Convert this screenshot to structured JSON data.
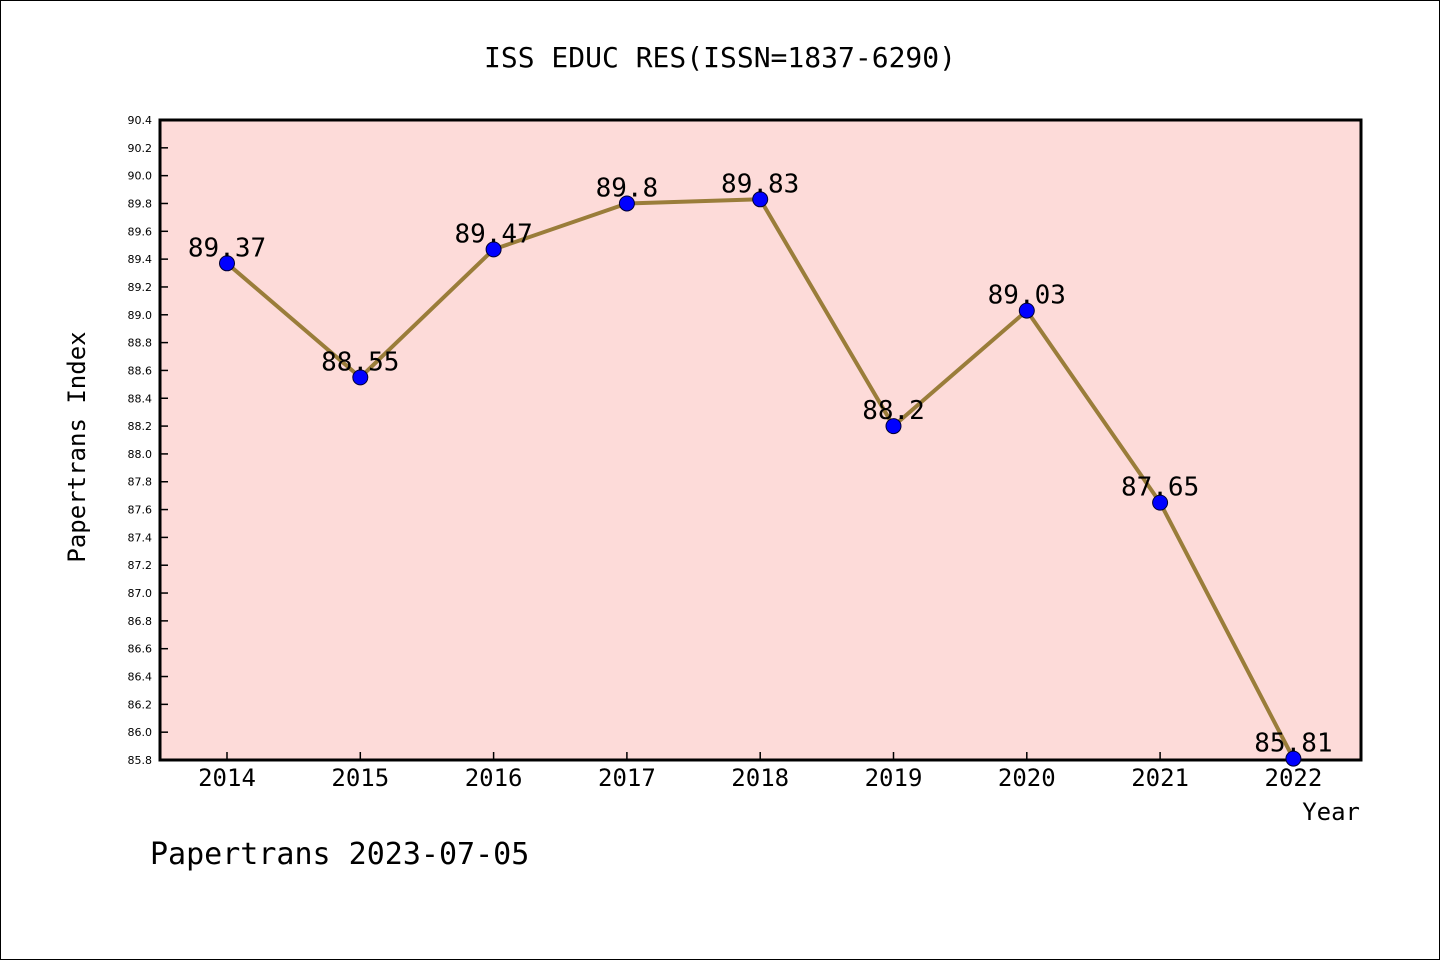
{
  "chart_data": {
    "type": "line",
    "title": "ISS EDUC RES(ISSN=1837-6290)",
    "xlabel": "Year",
    "ylabel": "Papertrans Index",
    "footer": "Papertrans 2023-07-05",
    "categories": [
      "2014",
      "2015",
      "2016",
      "2017",
      "2018",
      "2019",
      "2020",
      "2021",
      "2022"
    ],
    "values": [
      89.37,
      88.55,
      89.47,
      89.8,
      89.83,
      88.2,
      89.03,
      87.65,
      85.81
    ],
    "data_labels": [
      "89.37",
      "88.55",
      "89.47",
      "89.8",
      "89.83",
      "88.2",
      "89.03",
      "87.65",
      "85.81"
    ],
    "ylim": [
      85.8,
      90.4
    ],
    "yticks": [
      "85.8",
      "86.0",
      "86.2",
      "86.4",
      "86.6",
      "86.8",
      "87.0",
      "87.2",
      "87.4",
      "87.6",
      "87.8",
      "88.0",
      "88.2",
      "88.4",
      "88.6",
      "88.8",
      "89.0",
      "89.2",
      "89.4",
      "89.6",
      "89.8",
      "90.0",
      "90.2",
      "90.4"
    ],
    "grid": false,
    "legend": "none",
    "colors": {
      "plot_background": "#fddbd9",
      "line": "#9a7d3a",
      "marker": "#0000ff",
      "axis": "#000000"
    }
  }
}
